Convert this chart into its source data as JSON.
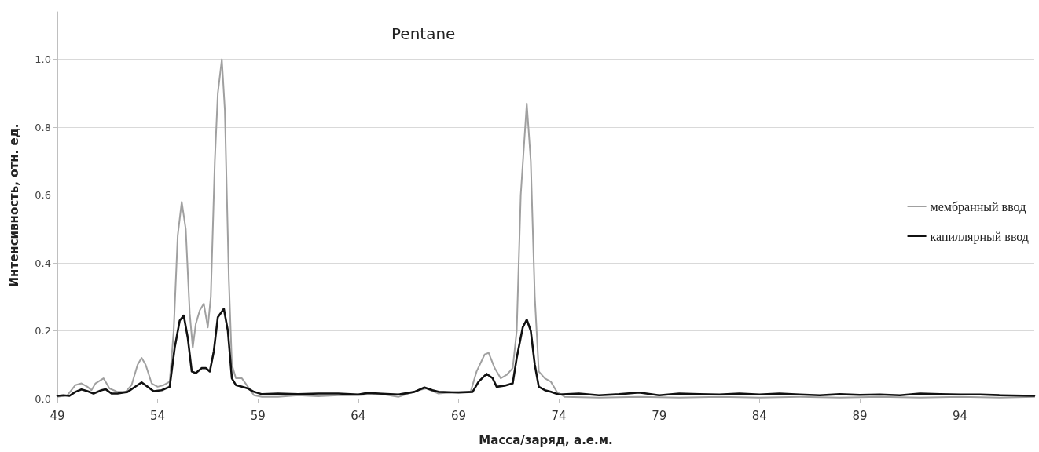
{
  "chart_data": {
    "type": "line",
    "title": "Pentane",
    "xlabel": "Масса/заряд, а.е.м.",
    "ylabel": "Интенсивность, отн. ед.",
    "xlim": [
      49,
      97.7
    ],
    "xticks": [
      49,
      54,
      59,
      64,
      69,
      74,
      79,
      84,
      89,
      94
    ],
    "ylim": [
      0,
      1.14
    ],
    "yticks": [
      {
        "value": 0,
        "label": "0.0"
      },
      0.2,
      0.4,
      0.6,
      0.8,
      {
        "value": 1,
        "label": "1.0"
      }
    ],
    "grid": "y",
    "legend": "right",
    "marker": "none",
    "line_style": "solid",
    "series": [
      {
        "name": "мембранный ввод",
        "color": "#a0a0a0",
        "x": [
          49.0,
          49.5,
          49.9,
          50.2,
          50.5,
          50.7,
          50.9,
          51.3,
          51.6,
          52.0,
          52.4,
          52.7,
          53.0,
          53.2,
          53.4,
          53.7,
          54.0,
          54.3,
          54.6,
          54.8,
          55.0,
          55.2,
          55.4,
          55.6,
          55.75,
          55.9,
          56.1,
          56.3,
          56.5,
          56.65,
          56.85,
          57.0,
          57.2,
          57.35,
          57.55,
          57.7,
          57.9,
          58.2,
          58.5,
          58.8,
          59.2,
          60,
          61,
          62,
          63,
          64,
          65,
          66,
          67,
          67.4,
          68,
          69,
          69.6,
          69.9,
          70.3,
          70.5,
          70.8,
          71.1,
          71.4,
          71.7,
          71.9,
          72.1,
          72.4,
          72.6,
          72.8,
          73.0,
          73.3,
          73.6,
          73.9,
          74.3,
          76,
          78,
          80,
          82,
          84,
          86,
          88,
          90,
          92,
          94,
          96,
          97.7
        ],
        "values": [
          0.005,
          0.01,
          0.04,
          0.045,
          0.035,
          0.025,
          0.045,
          0.06,
          0.03,
          0.02,
          0.02,
          0.04,
          0.1,
          0.12,
          0.1,
          0.045,
          0.035,
          0.04,
          0.05,
          0.2,
          0.48,
          0.58,
          0.5,
          0.25,
          0.15,
          0.22,
          0.26,
          0.28,
          0.21,
          0.3,
          0.7,
          0.9,
          1.0,
          0.85,
          0.35,
          0.1,
          0.06,
          0.06,
          0.035,
          0.01,
          0.005,
          0.005,
          0.01,
          0.007,
          0.01,
          0.01,
          0.015,
          0.005,
          0.025,
          0.03,
          0.015,
          0.02,
          0.02,
          0.08,
          0.13,
          0.135,
          0.09,
          0.06,
          0.07,
          0.09,
          0.2,
          0.6,
          0.87,
          0.7,
          0.3,
          0.08,
          0.06,
          0.05,
          0.02,
          0.005,
          0.003,
          0.005,
          0.003,
          0.005,
          0.003,
          0.005,
          0.003,
          0.005,
          0.003,
          0.005,
          0.003,
          0.005
        ]
      },
      {
        "name": "капиллярный ввод",
        "color": "#111111",
        "x": [
          49.0,
          49.3,
          49.6,
          49.9,
          50.2,
          50.5,
          50.8,
          51.2,
          51.4,
          51.7,
          52.0,
          52.5,
          53.0,
          53.2,
          53.5,
          53.8,
          54.2,
          54.6,
          54.85,
          55.1,
          55.3,
          55.5,
          55.7,
          55.9,
          56.2,
          56.4,
          56.6,
          56.8,
          57.0,
          57.3,
          57.5,
          57.7,
          57.9,
          58.2,
          58.5,
          58.8,
          59.2,
          60,
          61,
          62,
          63,
          64,
          64.5,
          65,
          66,
          66.8,
          67.3,
          67.7,
          68,
          69,
          69.7,
          70,
          70.4,
          70.7,
          70.9,
          71.3,
          71.7,
          71.9,
          72.2,
          72.4,
          72.6,
          72.8,
          73.0,
          73.3,
          73.6,
          74.0,
          75,
          76,
          77,
          78,
          79,
          80,
          81,
          82,
          83,
          84,
          85,
          86,
          87,
          88,
          89,
          90,
          91,
          92,
          93,
          94,
          95,
          96,
          97.7
        ],
        "values": [
          0.008,
          0.01,
          0.008,
          0.02,
          0.027,
          0.022,
          0.015,
          0.025,
          0.028,
          0.015,
          0.015,
          0.02,
          0.04,
          0.048,
          0.035,
          0.022,
          0.025,
          0.035,
          0.15,
          0.23,
          0.245,
          0.18,
          0.08,
          0.075,
          0.09,
          0.09,
          0.08,
          0.14,
          0.24,
          0.265,
          0.2,
          0.06,
          0.04,
          0.035,
          0.03,
          0.02,
          0.013,
          0.015,
          0.013,
          0.015,
          0.015,
          0.012,
          0.017,
          0.015,
          0.012,
          0.02,
          0.033,
          0.025,
          0.02,
          0.018,
          0.02,
          0.05,
          0.073,
          0.06,
          0.035,
          0.038,
          0.045,
          0.12,
          0.21,
          0.233,
          0.2,
          0.1,
          0.035,
          0.025,
          0.02,
          0.012,
          0.015,
          0.01,
          0.013,
          0.018,
          0.01,
          0.015,
          0.013,
          0.012,
          0.015,
          0.012,
          0.015,
          0.012,
          0.01,
          0.013,
          0.011,
          0.012,
          0.01,
          0.015,
          0.013,
          0.012,
          0.012,
          0.01,
          0.008
        ]
      }
    ]
  }
}
